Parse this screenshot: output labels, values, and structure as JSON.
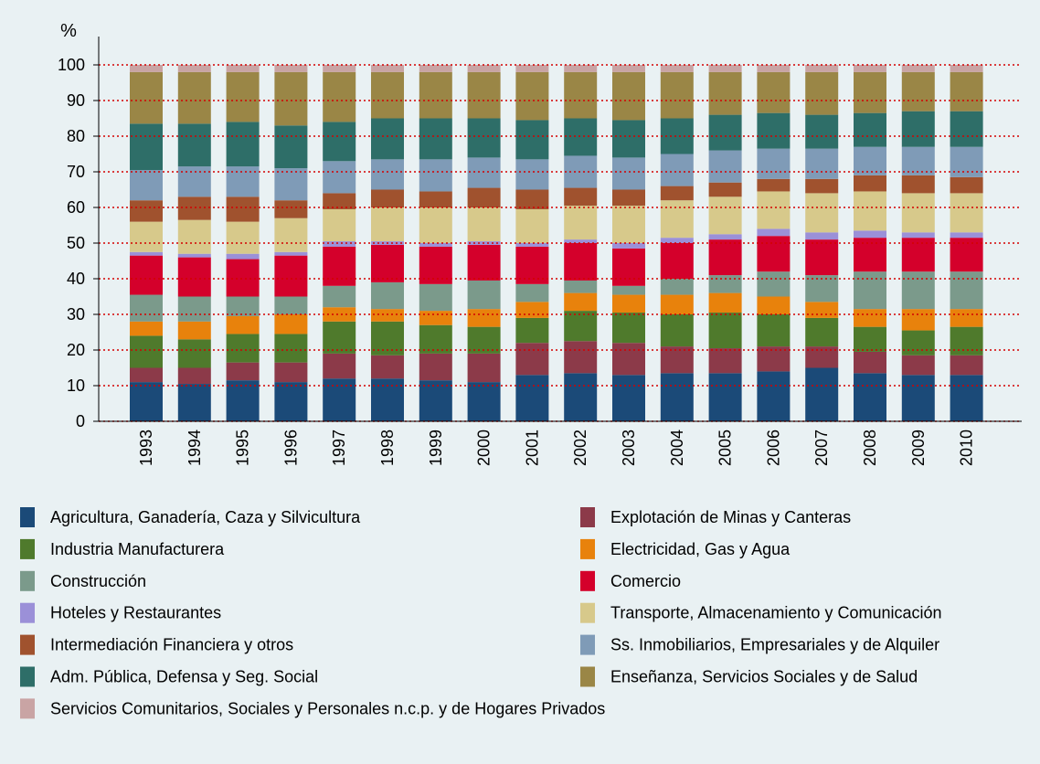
{
  "chart_data": {
    "type": "stacked_bar",
    "y_label": "%",
    "categories": [
      "1993",
      "1994",
      "1995",
      "1996",
      "1997",
      "1998",
      "1999",
      "2000",
      "2001",
      "2002",
      "2003",
      "2004",
      "2005",
      "2006",
      "2007",
      "2008",
      "2009",
      "2010"
    ],
    "ylim": [
      0,
      100
    ],
    "yticks": [
      0,
      10,
      20,
      30,
      40,
      50,
      60,
      70,
      80,
      90,
      100
    ],
    "grid": true,
    "series": [
      {
        "name": "Agricultura, Ganadería, Caza y Silvicultura",
        "color": "#1b4a78",
        "values": [
          11,
          10.5,
          11.5,
          11,
          12,
          12,
          11.5,
          11,
          13,
          13.5,
          13,
          13.5,
          13.5,
          14,
          15,
          13.5,
          13,
          13
        ]
      },
      {
        "name": "Explotación de Minas y Canteras",
        "color": "#8c3a49",
        "values": [
          4,
          4.5,
          5,
          5.5,
          7,
          6.5,
          7.5,
          8,
          9,
          9,
          9,
          7.5,
          7,
          7,
          6,
          6,
          5.5,
          5.5
        ]
      },
      {
        "name": "Industria Manufacturera",
        "color": "#4f7a2c",
        "values": [
          9,
          8,
          8,
          8,
          9,
          9.5,
          8,
          7.5,
          7,
          8.5,
          8.5,
          9,
          10,
          9,
          8,
          7,
          7,
          8
        ]
      },
      {
        "name": "Electricidad, Gas y Agua",
        "color": "#e8820c",
        "values": [
          4,
          5,
          5,
          5.5,
          4,
          3.5,
          4,
          5,
          4.5,
          5,
          5,
          5.5,
          5.5,
          5,
          4.5,
          5,
          6,
          5
        ]
      },
      {
        "name": "Construcción",
        "color": "#7b9a8b",
        "values": [
          7.5,
          7,
          5.5,
          5,
          6,
          7.5,
          7.5,
          8,
          5,
          3.5,
          2.5,
          4.5,
          5,
          7,
          7.5,
          10.5,
          10.5,
          10.5
        ]
      },
      {
        "name": "Comercio",
        "color": "#d4002b",
        "values": [
          11,
          11,
          10.5,
          11.5,
          11,
          10.5,
          10.5,
          10,
          10.5,
          10.5,
          10.5,
          10,
          10,
          10,
          10,
          9.5,
          9.5,
          9.5
        ]
      },
      {
        "name": "Hoteles y Restaurantes",
        "color": "#9b90d8",
        "values": [
          1,
          1,
          1.5,
          1,
          1.5,
          1,
          1,
          1,
          1,
          1,
          1.5,
          1.5,
          1.5,
          2,
          2,
          2,
          1.5,
          1.5
        ]
      },
      {
        "name": "Transporte, Almacenamiento y Comunicación",
        "color": "#d7c98b",
        "values": [
          8.5,
          9.5,
          9,
          9.5,
          9,
          9.5,
          10,
          9.5,
          9.5,
          9.5,
          10.5,
          10.5,
          10.5,
          10.5,
          11,
          11,
          11,
          11
        ]
      },
      {
        "name": "Intermediación Financiera y otros",
        "color": "#a0522e",
        "values": [
          6,
          6.5,
          7,
          5,
          4.5,
          5,
          4.5,
          5.5,
          5.5,
          5,
          4.5,
          4,
          4,
          3.5,
          4,
          4.5,
          5,
          4.5
        ]
      },
      {
        "name": "Ss. Inmobiliarios, Empresariales y de Alquiler",
        "color": "#7f9bb7",
        "values": [
          8.5,
          8.5,
          8.5,
          9,
          9,
          8.5,
          9,
          8.5,
          8.5,
          9,
          9,
          9,
          9,
          8.5,
          8.5,
          8,
          8,
          8.5
        ]
      },
      {
        "name": "Adm. Pública, Defensa y Seg. Social",
        "color": "#2e6e68",
        "values": [
          13,
          12,
          12.5,
          12,
          11,
          11.5,
          11.5,
          11,
          11,
          10.5,
          10.5,
          10,
          10,
          10,
          9.5,
          9.5,
          10,
          10
        ]
      },
      {
        "name": "Enseñanza, Servicios Sociales y de Salud",
        "color": "#9a8646",
        "values": [
          14.5,
          14.5,
          14,
          15,
          14,
          13,
          13,
          13,
          13.5,
          13,
          13.5,
          13,
          12,
          11.5,
          12,
          11.5,
          11,
          11
        ]
      },
      {
        "name": "Servicios Comunitarios, Sociales y Personales n.c.p. y de Hogares Privados",
        "color": "#c9a4a4",
        "values": [
          2,
          2,
          2,
          2,
          2,
          2,
          2,
          2,
          2,
          2,
          2,
          2,
          2,
          2,
          2,
          2,
          2,
          2
        ]
      }
    ]
  }
}
